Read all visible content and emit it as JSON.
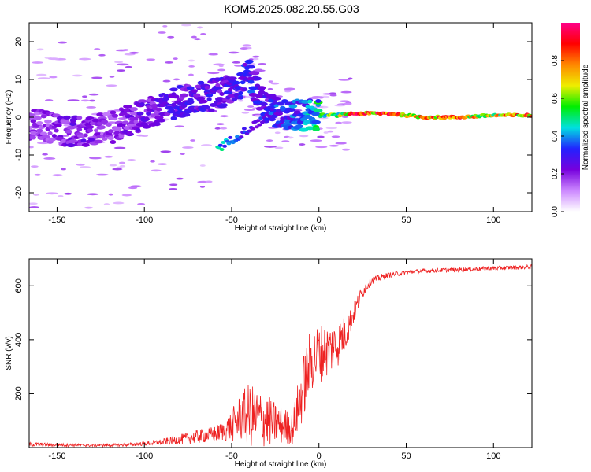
{
  "title": "KOM5.2025.082.20.55.G03",
  "chart_data": [
    {
      "type": "heatmap",
      "xlabel": "Height of straight line (km)",
      "ylabel": "Frequency (Hz)",
      "xlim": [
        -166,
        122
      ],
      "ylim": [
        -25,
        25
      ],
      "xticks": [
        -150,
        -100,
        -50,
        0,
        50,
        100
      ],
      "yticks": [
        -20,
        -10,
        0,
        10,
        20
      ],
      "colorbar": {
        "label": "Normalized spectral amplitude",
        "range": [
          0,
          1
        ],
        "ticks": [
          0.0,
          0.2,
          0.4,
          0.6,
          0.8
        ],
        "tick_labels": [
          "0.0",
          "0.2",
          "0.4",
          "0.6",
          "0.8"
        ],
        "colormap": [
          "#ffffff",
          "#cc88ff",
          "#7700dd",
          "#2222ff",
          "#00e0e0",
          "#00ee00",
          "#eeee00",
          "#ff8800",
          "#ff0000",
          "#ff0088"
        ]
      },
      "trend": [
        {
          "x": -160,
          "f": -2,
          "a": 0.2
        },
        {
          "x": -140,
          "f": -4,
          "a": 0.25
        },
        {
          "x": -120,
          "f": -3,
          "a": 0.2
        },
        {
          "x": -100,
          "f": 1,
          "a": 0.25
        },
        {
          "x": -80,
          "f": 4,
          "a": 0.3
        },
        {
          "x": -60,
          "f": 6,
          "a": 0.3
        },
        {
          "x": -50,
          "f": 7,
          "a": 0.3
        },
        {
          "x": -40,
          "f": 11,
          "a": 0.35
        },
        {
          "x": -30,
          "f": 2,
          "a": 0.3
        },
        {
          "x": -20,
          "f": 1,
          "a": 0.35
        },
        {
          "x": -10,
          "f": 0.5,
          "a": 0.4
        },
        {
          "x": 0,
          "f": 0.5,
          "a": 0.55
        },
        {
          "x": 10,
          "f": 0.5,
          "a": 0.65
        },
        {
          "x": 20,
          "f": 1,
          "a": 0.9
        },
        {
          "x": 40,
          "f": 1,
          "a": 0.95
        },
        {
          "x": 60,
          "f": 0,
          "a": 0.9
        },
        {
          "x": 80,
          "f": 0,
          "a": 0.85
        },
        {
          "x": 100,
          "f": 0.5,
          "a": 0.75
        },
        {
          "x": 120,
          "f": 0.5,
          "a": 0.9
        }
      ],
      "branch": [
        {
          "x": -57,
          "f": -8,
          "a": 0.45
        },
        {
          "x": -50,
          "f": -6,
          "a": 0.35
        },
        {
          "x": -40,
          "f": -3,
          "a": 0.3
        },
        {
          "x": -30,
          "f": 0,
          "a": 0.3
        },
        {
          "x": -25,
          "f": 3,
          "a": 0.35
        }
      ]
    },
    {
      "type": "line",
      "xlabel": "Height of straight line (km)",
      "ylabel": "SNR (v/v)",
      "xlim": [
        -166,
        122
      ],
      "ylim": [
        0,
        700
      ],
      "xticks": [
        -150,
        -100,
        -50,
        0,
        50,
        100
      ],
      "yticks": [
        200,
        400,
        600
      ],
      "series": [
        {
          "color": "#ee2222",
          "x": [
            -166,
            -150,
            -130,
            -110,
            -100,
            -90,
            -80,
            -70,
            -60,
            -55,
            -50,
            -45,
            -40,
            -35,
            -30,
            -25,
            -20,
            -15,
            -10,
            -5,
            0,
            5,
            10,
            15,
            20,
            25,
            30,
            40,
            50,
            60,
            80,
            100,
            122
          ],
          "y": [
            12,
            10,
            8,
            10,
            15,
            20,
            30,
            40,
            50,
            60,
            80,
            110,
            120,
            110,
            100,
            90,
            80,
            70,
            200,
            320,
            350,
            360,
            380,
            420,
            500,
            580,
            620,
            640,
            650,
            655,
            660,
            665,
            670
          ],
          "noise": [
            8,
            6,
            5,
            6,
            8,
            12,
            18,
            25,
            30,
            35,
            60,
            90,
            120,
            110,
            100,
            80,
            70,
            60,
            120,
            120,
            110,
            100,
            90,
            70,
            40,
            25,
            15,
            10,
            8,
            8,
            8,
            8,
            8
          ]
        }
      ]
    }
  ]
}
